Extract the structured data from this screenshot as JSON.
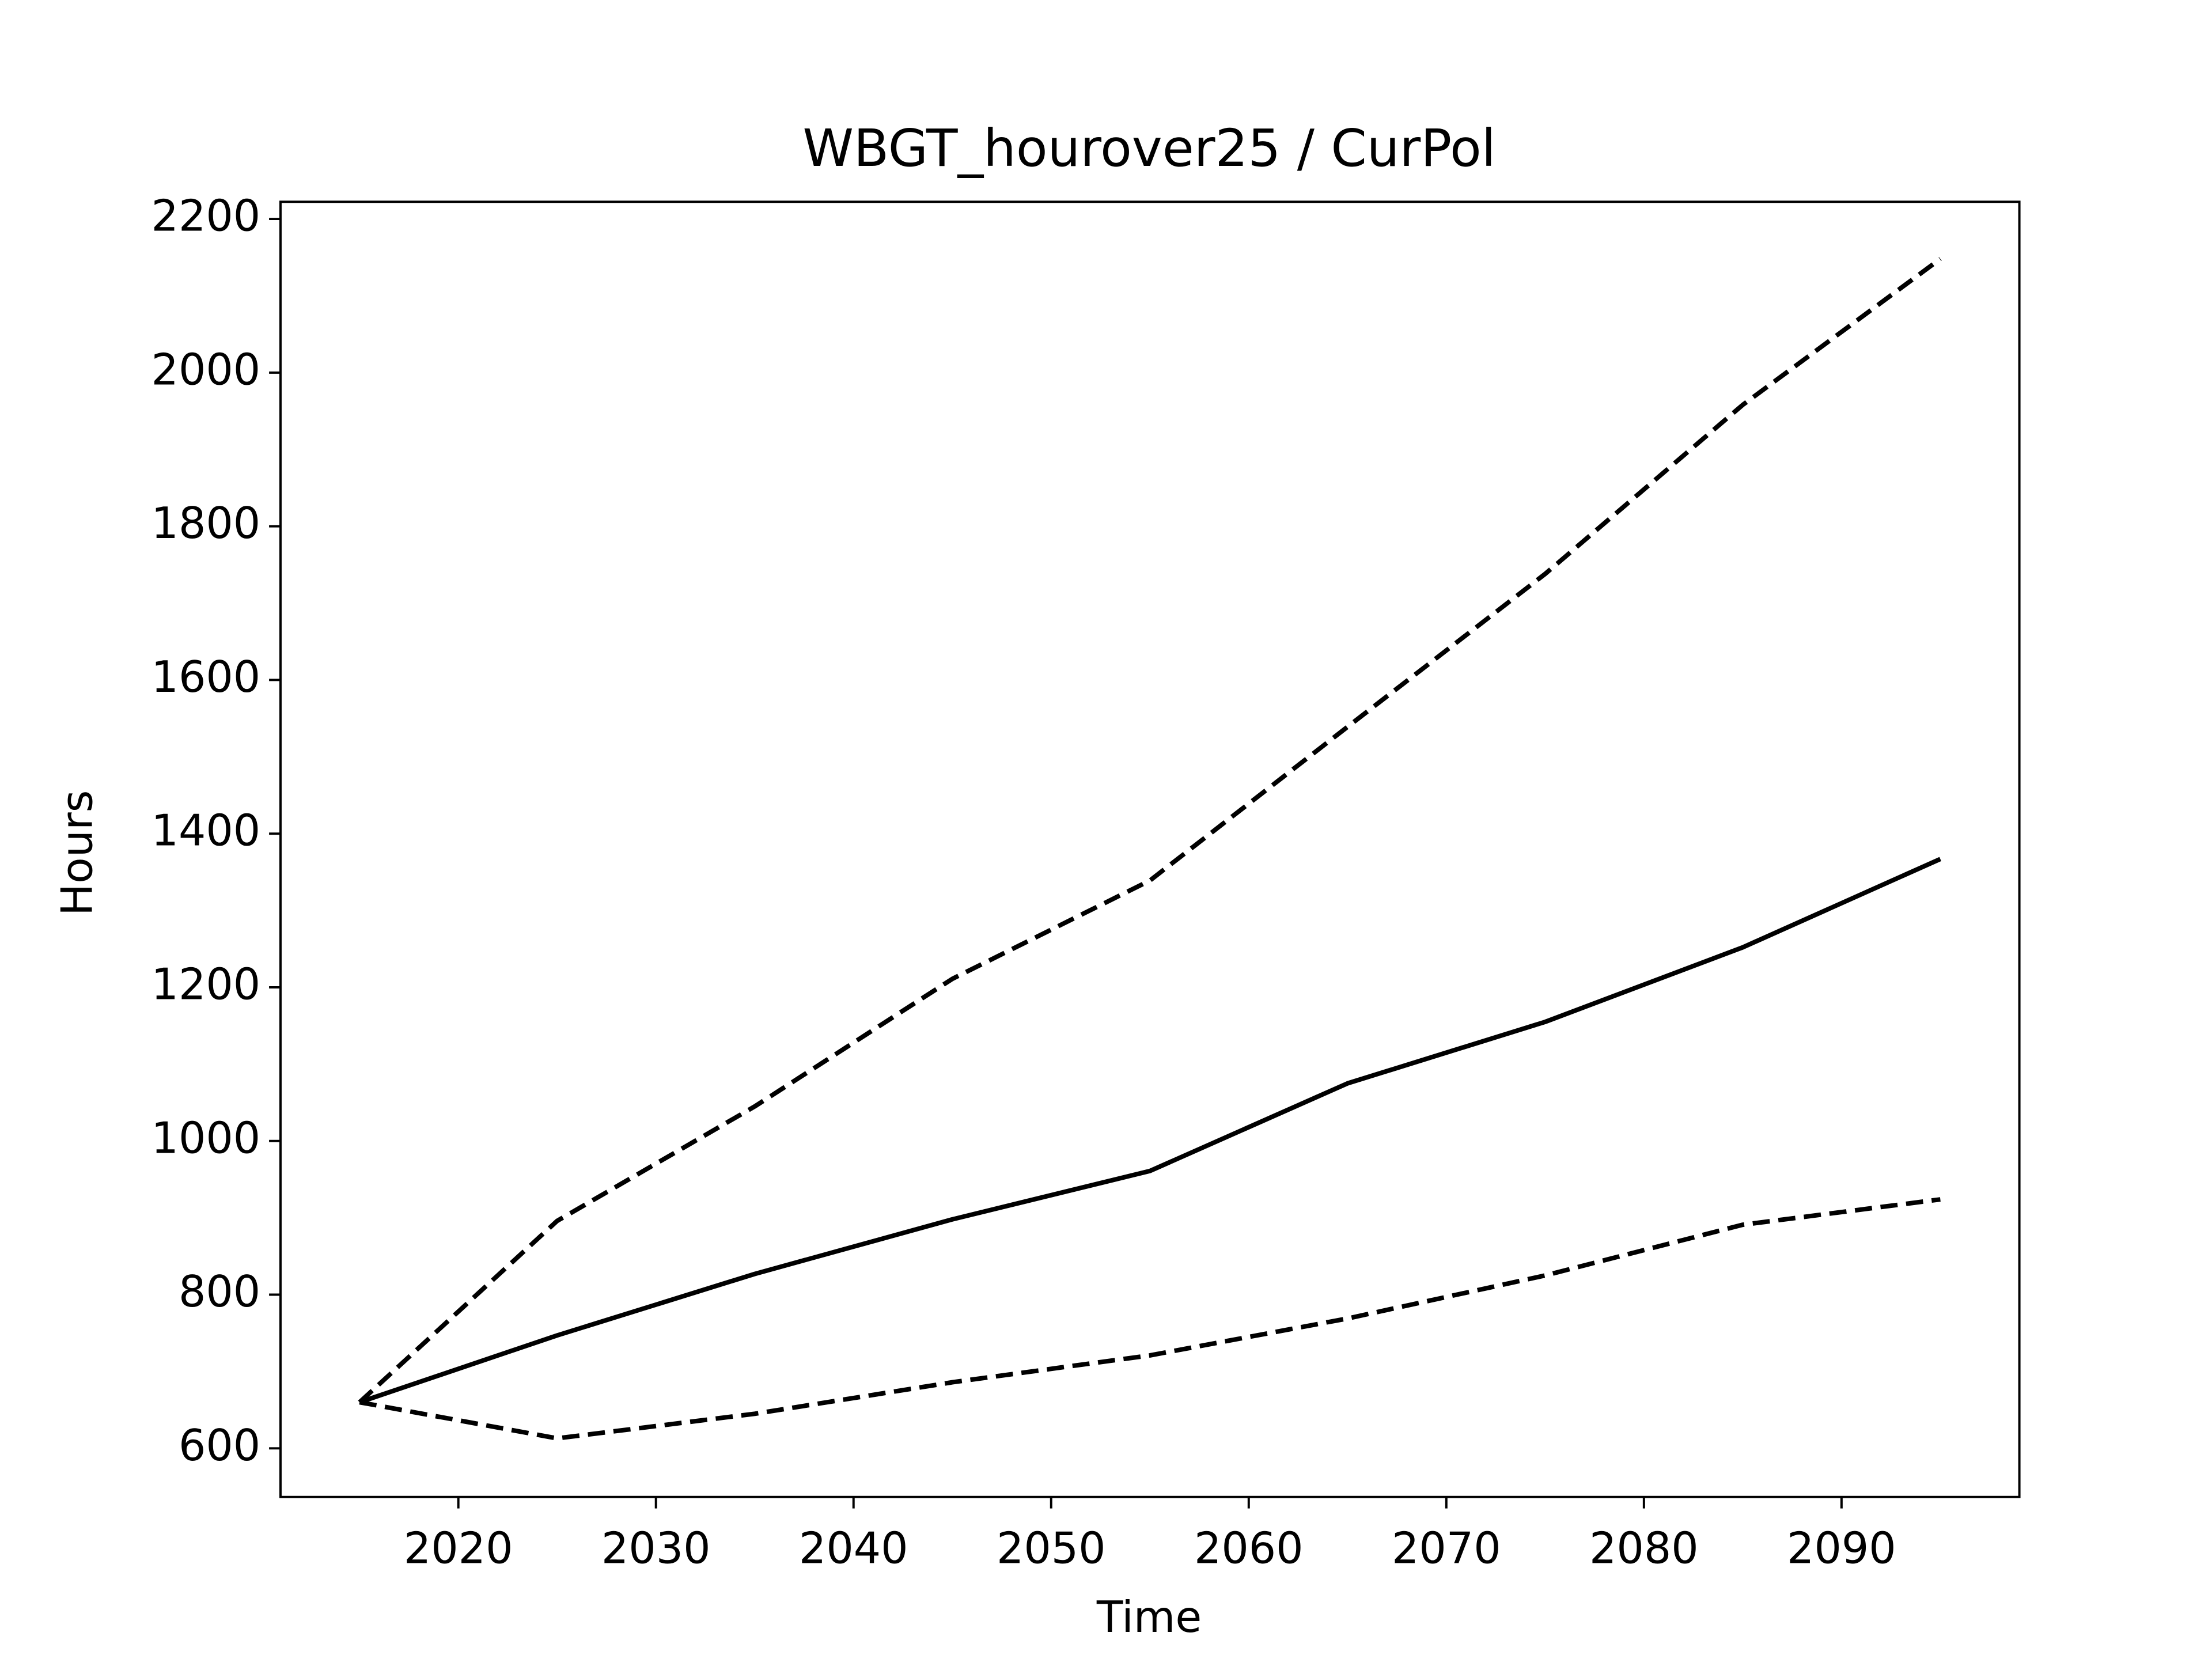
{
  "chart_data": {
    "type": "line",
    "title": "WBGT_hourover25 / CurPol",
    "xlabel": "Time",
    "ylabel": "Hours",
    "x": [
      2015,
      2025,
      2035,
      2045,
      2055,
      2065,
      2075,
      2085,
      2095
    ],
    "series": [
      {
        "color": "#000000",
        "linestyle": "dashed",
        "values": [
          660,
          896,
          1045,
          1211,
          1339,
          1539,
          1738,
          1958,
          2148
        ]
      },
      {
        "color": "#000000",
        "linestyle": "solid",
        "values": [
          660,
          747,
          827,
          898,
          961,
          1075,
          1155,
          1252,
          1367
        ]
      },
      {
        "color": "#000000",
        "linestyle": "dashed",
        "values": [
          660,
          613,
          645,
          686,
          721,
          769,
          825,
          891,
          924
        ]
      }
    ],
    "xlim": [
      2011,
      2099
    ],
    "ylim": [
      536.7,
      2222.3
    ],
    "xticks": [
      2020,
      2030,
      2040,
      2050,
      2060,
      2070,
      2080,
      2090
    ],
    "yticks": [
      600,
      800,
      1000,
      1200,
      1400,
      1600,
      1800,
      2000,
      2200
    ],
    "grid": false
  }
}
